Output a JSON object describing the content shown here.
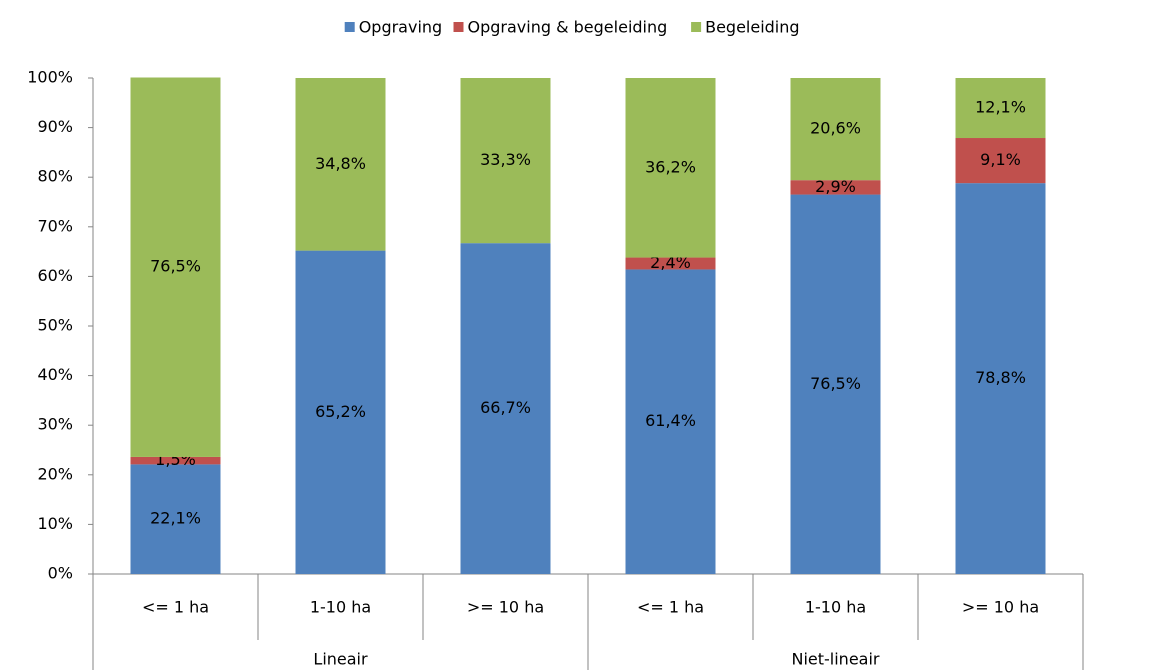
{
  "chart_data": {
    "type": "stacked_bar",
    "categories": [
      "<= 1 ha",
      "1-10 ha",
      ">= 10 ha",
      "<= 1 ha",
      "1-10 ha",
      ">= 10 ha"
    ],
    "groups": [
      "Lineair",
      "Niet-lineair"
    ],
    "series": [
      {
        "name": "Opgraving",
        "color": "#4f81bd",
        "values": [
          22.1,
          65.2,
          66.7,
          61.4,
          76.5,
          78.8
        ],
        "value_labels": [
          "22,1%",
          "65,2%",
          "66,7%",
          "61,4%",
          "76,5%",
          "78,8%"
        ]
      },
      {
        "name": "Opgraving & begeleiding",
        "color": "#c0504d",
        "values": [
          1.5,
          null,
          null,
          2.4,
          2.9,
          9.1
        ],
        "value_labels": [
          "1,5%",
          null,
          null,
          "2,4%",
          "2,9%",
          "9,1%"
        ]
      },
      {
        "name": "Begeleiding",
        "color": "#9bbb59",
        "values": [
          76.5,
          34.8,
          33.3,
          36.2,
          20.6,
          12.1
        ],
        "value_labels": [
          "76,5%",
          "34,8%",
          "33,3%",
          "36,2%",
          "20,6%",
          "12,1%"
        ]
      }
    ],
    "ylim": [
      0,
      100
    ],
    "yticks": [
      {
        "value": 0,
        "label": "0%"
      },
      {
        "value": 10,
        "label": "10%"
      },
      {
        "value": 20,
        "label": "20%"
      },
      {
        "value": 30,
        "label": "30%"
      },
      {
        "value": 40,
        "label": "40%"
      },
      {
        "value": 50,
        "label": "50%"
      },
      {
        "value": 60,
        "label": "60%"
      },
      {
        "value": 70,
        "label": "70%"
      },
      {
        "value": 80,
        "label": "80%"
      },
      {
        "value": 90,
        "label": "90%"
      },
      {
        "value": 100,
        "label": "100%"
      }
    ],
    "legend": "top"
  }
}
